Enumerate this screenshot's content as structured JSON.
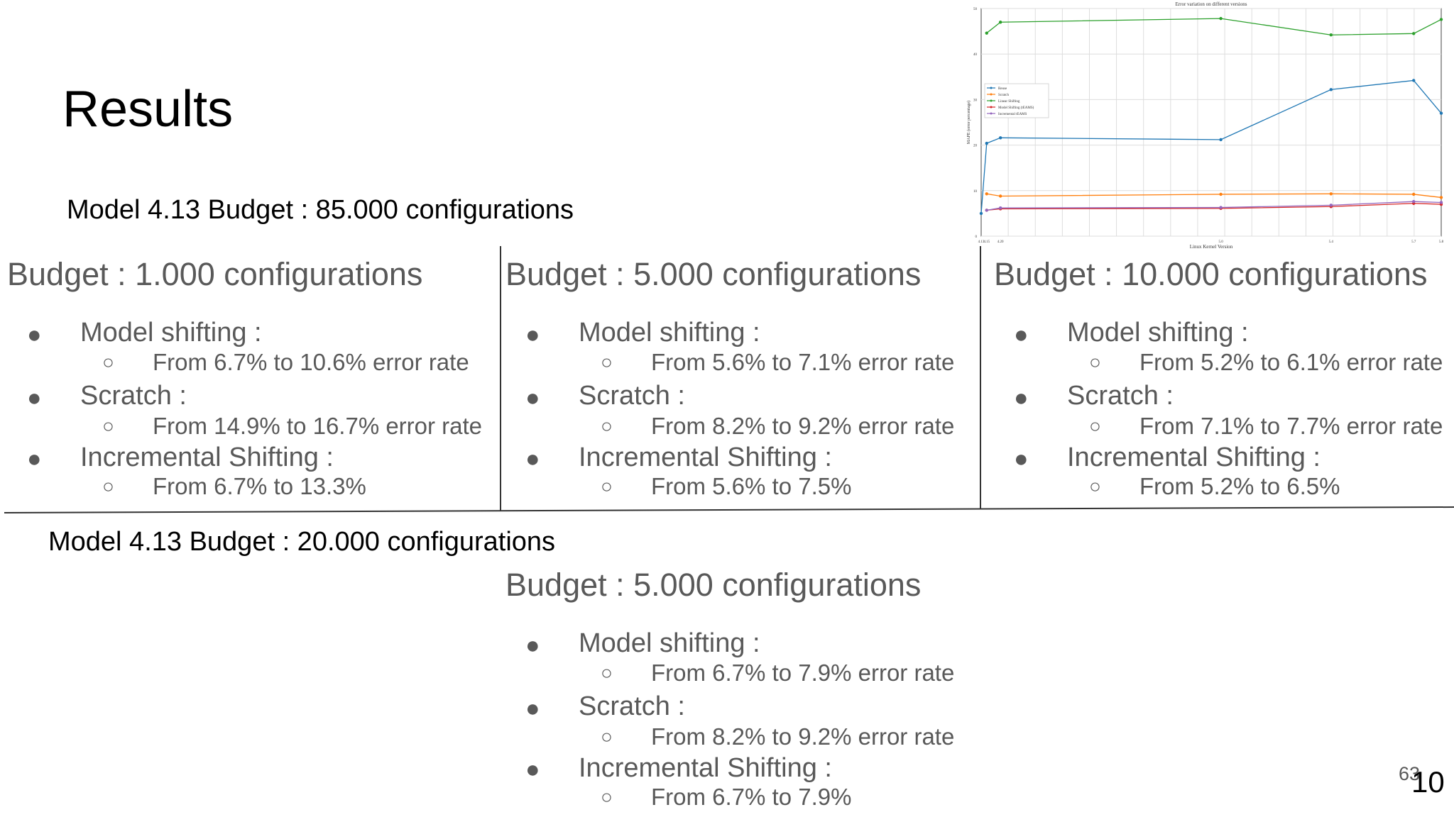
{
  "slide": {
    "title": "Results",
    "model_top": "Model 4.13 Budget : 85.000 configurations",
    "model_bottom": "Model 4.13 Budget : 20.000 configurations",
    "bullet_symbol": "●",
    "sub_bullet_symbol": "○",
    "page_number_back": "63",
    "page_number_front": "10"
  },
  "columns": [
    {
      "heading": "Budget : 1.000 configurations",
      "items": [
        {
          "label": "Model shifting :",
          "detail": "From 6.7% to 10.6% error rate"
        },
        {
          "label": "Scratch :",
          "detail": "From 14.9% to 16.7% error rate"
        },
        {
          "label": "Incremental Shifting :",
          "detail": "From 6.7% to 13.3%"
        }
      ]
    },
    {
      "heading": "Budget : 5.000 configurations",
      "items": [
        {
          "label": "Model shifting :",
          "detail": "From 5.6% to 7.1% error rate"
        },
        {
          "label": "Scratch :",
          "detail": "From 8.2% to 9.2% error rate"
        },
        {
          "label": "Incremental Shifting :",
          "detail": "From 5.6% to 7.5%"
        }
      ]
    },
    {
      "heading": "Budget : 10.000 configurations",
      "items": [
        {
          "label": "Model shifting :",
          "detail": "From 5.2% to 6.1% error rate"
        },
        {
          "label": "Scratch :",
          "detail": "From 7.1% to 7.7% error rate"
        },
        {
          "label": "Incremental Shifting :",
          "detail": "From 5.2% to 6.5%"
        }
      ]
    }
  ],
  "bottom_column": {
    "heading": "Budget : 5.000 configurations",
    "items": [
      {
        "label": "Model shifting :",
        "detail": "From 6.7% to 7.9% error rate"
      },
      {
        "label": "Scratch :",
        "detail": "From 8.2% to 9.2% error rate"
      },
      {
        "label": "Incremental Shifting :",
        "detail": "From 6.7% to 7.9%"
      }
    ]
  },
  "chart_data": {
    "type": "line",
    "title": "Error variation on different versions",
    "xlabel": "Linux Kernel Version",
    "ylabel": "MAPE (error percentage)",
    "x_tick_labels": [
      "4.13",
      "4.15",
      "4.20",
      "5.0",
      "5.4",
      "5.7",
      "5.8"
    ],
    "x": [
      4.13,
      4.15,
      4.2,
      5.0,
      5.4,
      5.7,
      5.8
    ],
    "ylim": [
      0,
      50
    ],
    "yticks": [
      0,
      10,
      20,
      30,
      40,
      50
    ],
    "grid": true,
    "legend_position": "upper-left",
    "series": [
      {
        "name": "Reuse",
        "color": "#1f77b4",
        "values": [
          5.0,
          20.4,
          21.6,
          21.2,
          32.2,
          34.2,
          27.0
        ]
      },
      {
        "name": "Scratch",
        "color": "#ff7f0e",
        "values": [
          null,
          9.3,
          8.8,
          9.2,
          9.3,
          9.2,
          8.5
        ]
      },
      {
        "name": "Linear Shifting",
        "color": "#2ca02c",
        "values": [
          null,
          44.6,
          47.0,
          47.8,
          44.2,
          44.5,
          47.6
        ]
      },
      {
        "name": "Model Shifting (tEAMS)",
        "color": "#d62728",
        "values": [
          null,
          5.7,
          6.0,
          6.1,
          6.5,
          7.2,
          7.0
        ]
      },
      {
        "name": "Incremental tEAMS",
        "color": "#9467bd",
        "values": [
          null,
          5.7,
          6.2,
          6.3,
          6.8,
          7.6,
          7.4
        ]
      }
    ]
  }
}
